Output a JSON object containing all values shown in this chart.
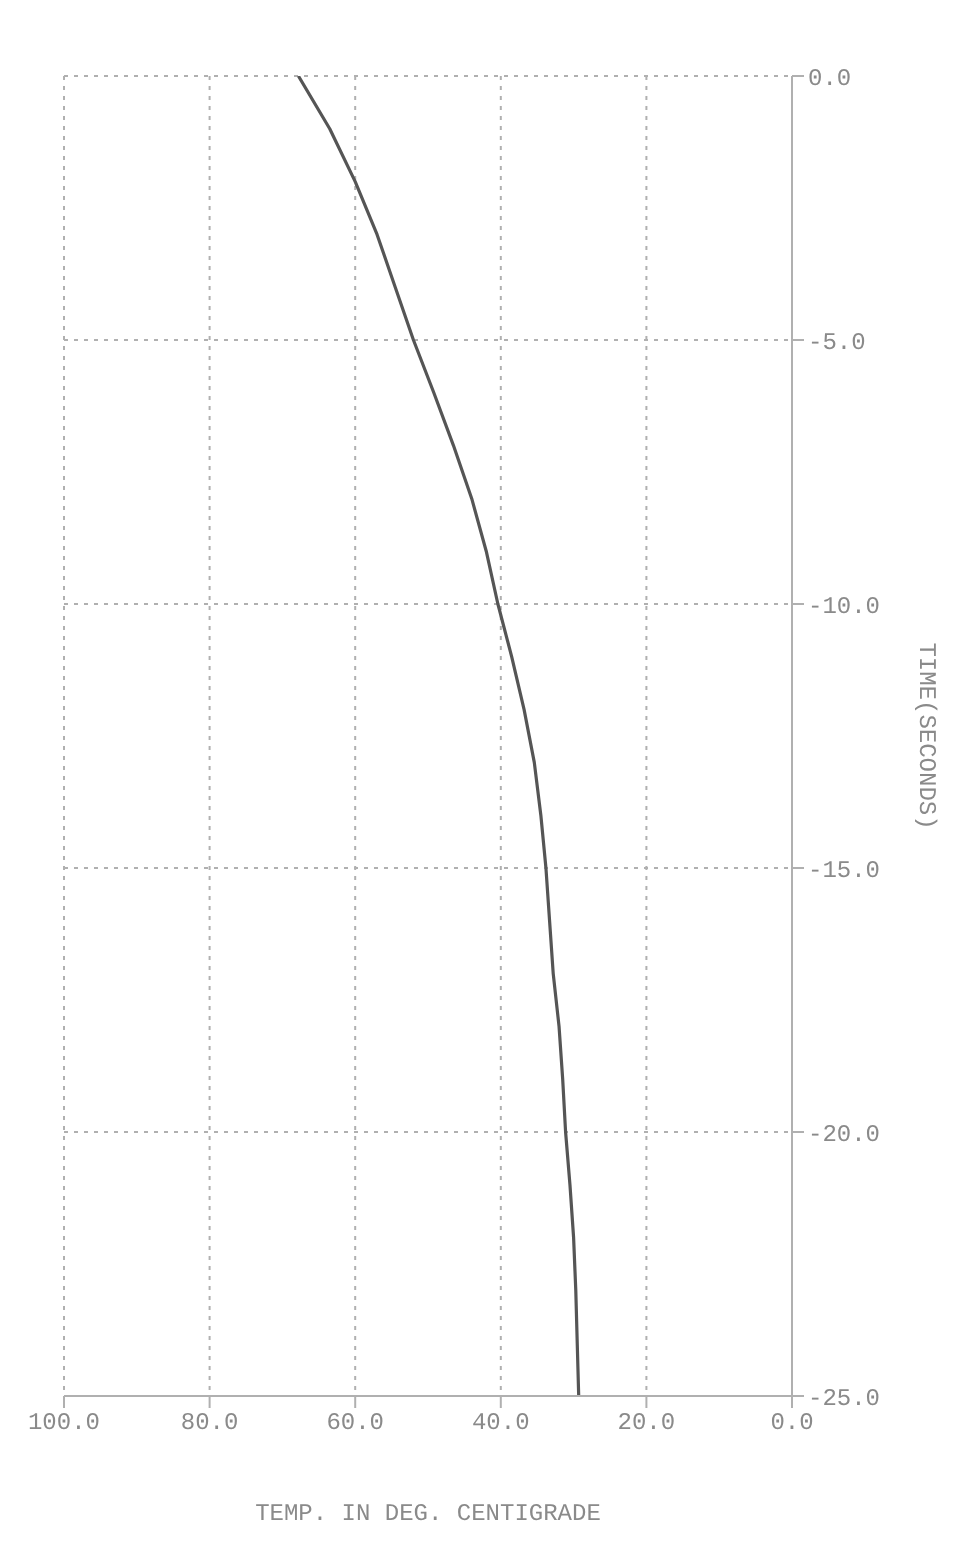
{
  "chart_data": {
    "type": "line",
    "xlabel": "TEMP. IN DEG. CENTIGRADE",
    "ylabel": "TIME(SECONDS)",
    "series": [
      {
        "color": "#555555",
        "x": [
          29.3,
          29.5,
          29.7,
          30.0,
          30.5,
          31.1,
          31.5,
          32.0,
          32.8,
          33.3,
          33.8,
          34.5,
          35.4,
          36.8,
          38.5,
          40.4,
          42.0,
          44.0,
          46.5,
          49.2,
          52.0,
          54.5,
          57.0,
          60.0,
          63.5,
          67.8
        ],
        "values": [
          -25,
          -24,
          -23,
          -22,
          -21,
          -20,
          -19,
          -18,
          -17,
          -16,
          -15,
          -14,
          -13,
          -12,
          -11,
          -10,
          -9,
          -8,
          -7,
          -6,
          -5,
          -4,
          -3,
          -2,
          -1,
          0
        ]
      }
    ],
    "xlim": [
      100,
      0
    ],
    "xticks": [
      {
        "value": 100,
        "label": "100.0"
      },
      {
        "value": 80,
        "label": "80.0"
      },
      {
        "value": 60,
        "label": "60.0"
      },
      {
        "value": 40,
        "label": "40.0"
      },
      {
        "value": 20,
        "label": "20.0"
      },
      {
        "value": 0,
        "label": "0.0"
      }
    ],
    "ylim": [
      -25,
      0
    ],
    "yticks": [
      {
        "value": -25,
        "label": "-25.0"
      },
      {
        "value": -20,
        "label": "-20.0"
      },
      {
        "value": -15,
        "label": "-15.0"
      },
      {
        "value": -10,
        "label": "-10.0"
      },
      {
        "value": -5,
        "label": "-5.0"
      },
      {
        "value": 0,
        "label": "0.0"
      }
    ],
    "grid": true,
    "marker": "none",
    "line_style": "solid",
    "legend": false
  }
}
